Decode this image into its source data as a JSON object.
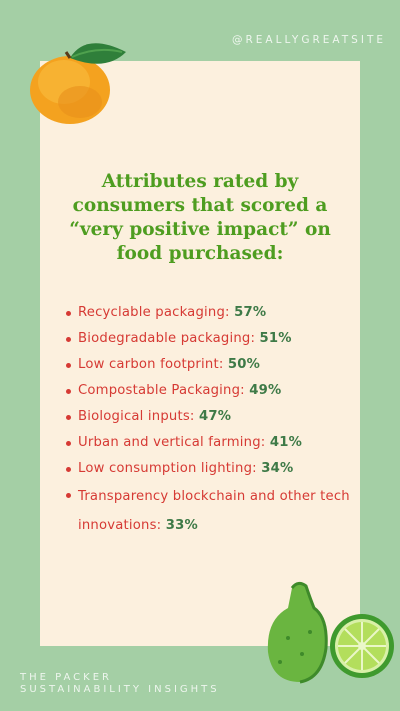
{
  "handle": "@REALLYGREATSITE",
  "title": "Attributes rated by consumers that scored a “very positive impact” on food purchased:",
  "attributes": [
    {
      "label": "Recyclable packaging:",
      "percent": "57%"
    },
    {
      "label": "Biodegradable packaging:",
      "percent": "51%"
    },
    {
      "label": "Low carbon footprint:",
      "percent": "50%"
    },
    {
      "label": "Compostable Packaging:",
      "percent": "49%"
    },
    {
      "label": "Biological inputs:",
      "percent": "47%"
    },
    {
      "label": "Urban and vertical farming:",
      "percent": "41%"
    },
    {
      "label": "Low consumption lighting:",
      "percent": "34%"
    },
    {
      "label": "Transparency blockchain and other tech innovations:",
      "percent": "33%"
    }
  ],
  "footer": {
    "line1": "THE PACKER",
    "line2": "SUSTAINABILITY INSIGHTS"
  },
  "illustrations": {
    "top_left": "mango-icon",
    "bottom_right": "bergamot-icon"
  }
}
